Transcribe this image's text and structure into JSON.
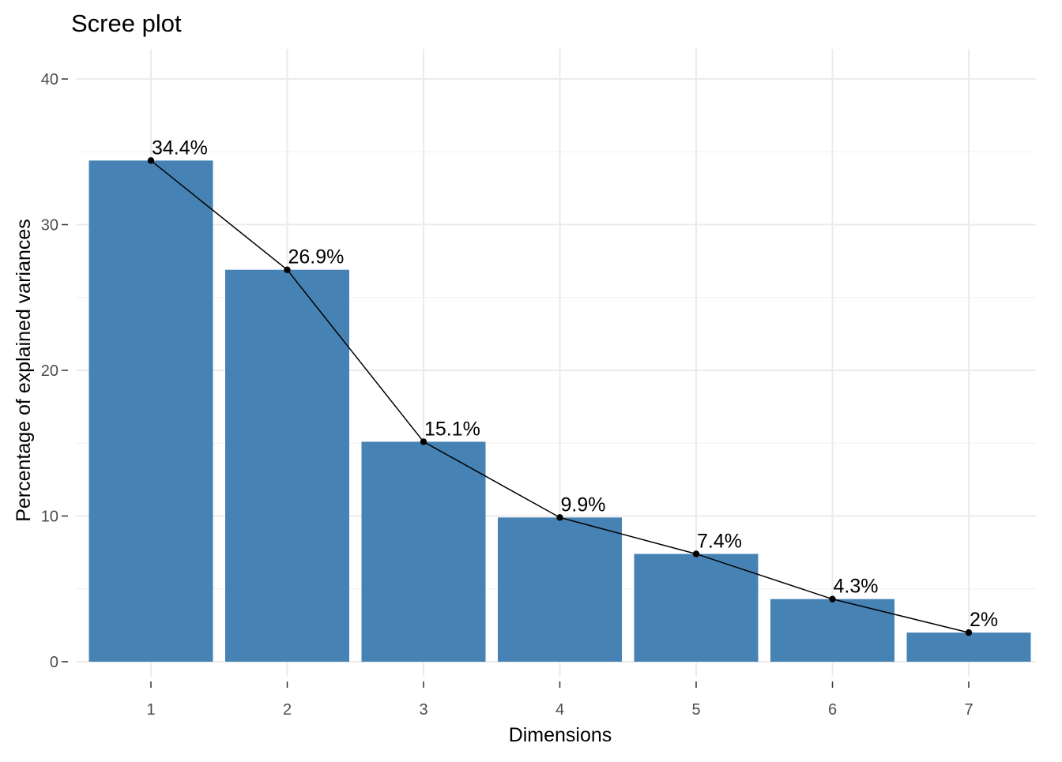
{
  "chart_data": {
    "type": "bar",
    "title": "Scree plot",
    "xlabel": "Dimensions",
    "ylabel": "Percentage of explained variances",
    "categories": [
      "1",
      "2",
      "3",
      "4",
      "5",
      "6",
      "7"
    ],
    "values": [
      34.4,
      26.9,
      15.1,
      9.9,
      7.4,
      4.3,
      2.0
    ],
    "data_labels": [
      "34.4%",
      "26.9%",
      "15.1%",
      "9.9%",
      "7.4%",
      "4.3%",
      "2%"
    ],
    "line_overlay": true,
    "ylim": [
      0,
      40
    ],
    "yticks": [
      0,
      10,
      20,
      30,
      40
    ],
    "grid": true,
    "legend": "none",
    "colors": {
      "bar": "#4682B4",
      "line": "#000000",
      "grid_major": "#ebebeb",
      "grid_minor": "#f2f2f2"
    }
  }
}
